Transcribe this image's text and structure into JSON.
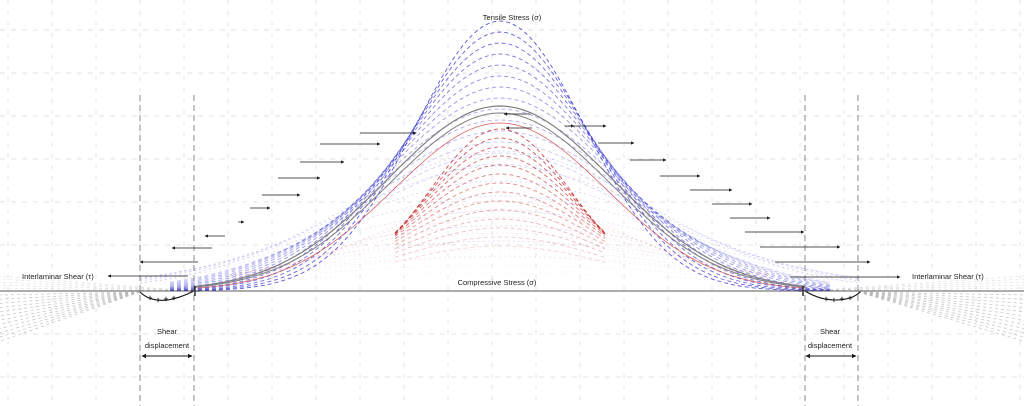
{
  "diagram": {
    "labels": {
      "tensile_stress": "Tensile Stress (σ)",
      "compressive_stress": "Compressive Stress (σ)",
      "interlaminar_shear_left": "Interlaminar Shear (τ)",
      "interlaminar_shear_right": "Interlaminar Shear (τ)",
      "shear_left_line1": "Shear",
      "shear_left_line2": "displacement",
      "shear_right_line1": "Shear",
      "shear_right_line2": "displacement"
    },
    "colors": {
      "tensile": "#3b3bd6",
      "compressive": "#cc2a2a",
      "neutral": "#808080",
      "shear_fan": "#b8b8b8",
      "grid": "#c8c8c8",
      "arrow": "#1a1a1a"
    },
    "icons": [
      "arrow-left-icon",
      "arrow-right-icon",
      "support-cross-icon"
    ]
  }
}
